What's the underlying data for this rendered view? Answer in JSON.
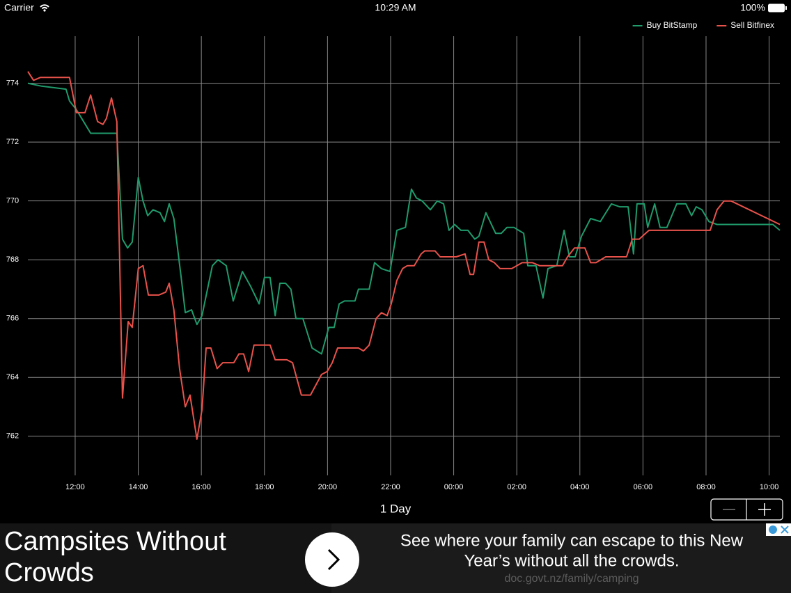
{
  "status_bar": {
    "carrier": "Carrier",
    "time": "10:29 AM",
    "battery": "100%"
  },
  "chart_data": {
    "type": "line",
    "series": [
      {
        "name": "Buy BitStamp",
        "color": "#1f9b6c",
        "x": [
          10.5,
          10.94,
          11.71,
          11.82,
          12.04,
          12.49,
          12.93,
          13.32,
          13.5,
          13.66,
          13.81,
          14.0,
          14.15,
          14.3,
          14.47,
          14.69,
          14.83,
          14.98,
          15.13,
          15.36,
          15.49,
          15.69,
          15.86,
          16.02,
          16.35,
          16.53,
          16.79,
          17.01,
          17.3,
          17.56,
          17.83,
          18.0,
          18.18,
          18.34,
          18.49,
          18.67,
          18.84,
          19.0,
          19.22,
          19.51,
          19.81,
          20.04,
          20.21,
          20.37,
          20.54,
          20.87,
          20.98,
          21.32,
          21.49,
          21.71,
          21.98,
          22.2,
          22.47,
          22.66,
          22.82,
          23.0,
          23.26,
          23.48,
          23.68,
          23.85,
          24.03,
          24.23,
          24.45,
          24.67,
          24.8,
          25.02,
          25.33,
          25.51,
          25.69,
          25.91,
          26.06,
          26.22,
          26.35,
          26.61,
          26.83,
          26.99,
          27.27,
          27.5,
          27.67,
          27.85,
          28.05,
          28.34,
          28.65,
          29.0,
          29.26,
          29.53,
          29.7,
          29.81,
          30.04,
          30.15,
          30.37,
          30.54,
          30.76,
          31.07,
          31.36,
          31.54,
          31.69,
          31.87,
          32.09,
          32.35,
          34.12,
          34.34
        ],
        "values": [
          774.0,
          773.9,
          773.8,
          773.4,
          773.1,
          772.3,
          772.3,
          772.3,
          768.7,
          768.4,
          768.6,
          770.8,
          770.0,
          769.5,
          769.7,
          769.6,
          769.3,
          769.9,
          769.4,
          767.4,
          766.2,
          766.3,
          765.8,
          766.1,
          767.8,
          768.0,
          767.8,
          766.6,
          767.6,
          767.1,
          766.5,
          767.4,
          767.4,
          766.1,
          767.2,
          767.2,
          767.0,
          766.0,
          766.0,
          765.0,
          764.8,
          765.7,
          765.7,
          766.5,
          766.6,
          766.6,
          767.0,
          767.0,
          767.9,
          767.7,
          767.6,
          769.0,
          769.1,
          770.4,
          770.1,
          770.0,
          769.7,
          770.0,
          769.9,
          769.0,
          769.2,
          769.0,
          769.0,
          768.7,
          768.8,
          769.6,
          768.9,
          768.9,
          769.1,
          769.1,
          769.0,
          768.9,
          767.8,
          767.8,
          766.7,
          767.7,
          767.8,
          769.0,
          768.1,
          768.1,
          768.8,
          769.4,
          769.3,
          769.9,
          769.8,
          769.8,
          768.2,
          769.9,
          769.9,
          769.1,
          769.9,
          769.1,
          769.1,
          769.9,
          769.9,
          769.5,
          769.8,
          769.7,
          769.3,
          769.2,
          769.2,
          769.0
        ]
      },
      {
        "name": "Sell Bitfinex",
        "color": "#e9524b",
        "x": [
          10.5,
          10.68,
          10.9,
          11.82,
          12.04,
          12.31,
          12.49,
          12.71,
          12.88,
          12.99,
          13.15,
          13.32,
          13.5,
          13.68,
          13.81,
          14.0,
          14.15,
          14.32,
          14.65,
          14.87,
          14.98,
          15.13,
          15.31,
          15.49,
          15.64,
          15.86,
          16.02,
          16.15,
          16.3,
          16.5,
          16.68,
          16.9,
          17.03,
          17.19,
          17.34,
          17.5,
          17.67,
          18.18,
          18.34,
          18.71,
          18.89,
          19.17,
          19.46,
          19.81,
          19.99,
          20.15,
          20.32,
          20.65,
          20.98,
          21.14,
          21.32,
          21.54,
          21.71,
          21.89,
          22.02,
          22.2,
          22.38,
          22.53,
          22.75,
          22.97,
          23.08,
          23.41,
          23.57,
          23.85,
          24.08,
          24.36,
          24.52,
          24.63,
          24.8,
          24.96,
          25.11,
          25.29,
          25.47,
          25.84,
          26.17,
          26.5,
          26.72,
          27.17,
          27.45,
          27.61,
          27.83,
          28.16,
          28.34,
          28.51,
          28.82,
          29.48,
          29.66,
          29.88,
          30.19,
          30.59,
          32.13,
          32.35,
          32.57,
          32.79,
          34.34
        ],
        "values": [
          774.4,
          774.1,
          774.2,
          774.2,
          773.0,
          773.0,
          773.6,
          772.7,
          772.6,
          772.8,
          773.5,
          772.7,
          763.3,
          765.9,
          765.7,
          767.7,
          767.8,
          766.8,
          766.8,
          766.9,
          767.2,
          766.3,
          764.3,
          763.0,
          763.4,
          761.9,
          762.9,
          765.0,
          765.0,
          764.3,
          764.5,
          764.5,
          764.5,
          764.8,
          764.8,
          764.2,
          765.1,
          765.1,
          764.6,
          764.6,
          764.5,
          763.4,
          763.4,
          764.1,
          764.2,
          764.5,
          765.0,
          765.0,
          765.0,
          764.9,
          765.1,
          766.0,
          766.2,
          766.1,
          766.5,
          767.3,
          767.7,
          767.8,
          767.8,
          768.2,
          768.3,
          768.3,
          768.1,
          768.1,
          768.1,
          768.2,
          767.5,
          767.5,
          768.6,
          768.6,
          768.0,
          767.9,
          767.7,
          767.7,
          767.9,
          767.9,
          767.8,
          767.8,
          767.8,
          768.1,
          768.4,
          768.4,
          767.9,
          767.9,
          768.1,
          768.1,
          768.7,
          768.7,
          769.0,
          769.0,
          769.0,
          769.7,
          770.0,
          770.0,
          769.2
        ]
      }
    ],
    "xlim": [
      10.5,
      34.34
    ],
    "xticks": [
      {
        "value": 12,
        "label": "12:00"
      },
      {
        "value": 14,
        "label": "14:00"
      },
      {
        "value": 16,
        "label": "16:00"
      },
      {
        "value": 18,
        "label": "18:00"
      },
      {
        "value": 20,
        "label": "20:00"
      },
      {
        "value": 22,
        "label": "22:00"
      },
      {
        "value": 24,
        "label": "00:00"
      },
      {
        "value": 26,
        "label": "02:00"
      },
      {
        "value": 28,
        "label": "04:00"
      },
      {
        "value": 30,
        "label": "06:00"
      },
      {
        "value": 32,
        "label": "08:00"
      },
      {
        "value": 34,
        "label": "10:00"
      }
    ],
    "ylim": [
      760.67,
      775.6
    ],
    "yticks": [
      762,
      764,
      766,
      768,
      770,
      772,
      774
    ],
    "grid": true,
    "legend": "top-right"
  },
  "range_label": "1 Day",
  "ad": {
    "headline": [
      "Campsites Without",
      "Crowds"
    ],
    "body": [
      "See where your family can escape to this New",
      "Year’s without all the crowds."
    ],
    "url": "doc.govt.nz/family/camping"
  }
}
